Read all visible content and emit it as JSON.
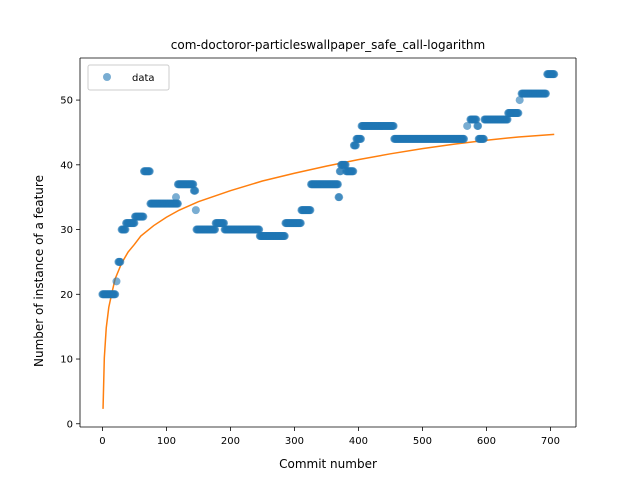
{
  "chart_data": {
    "type": "scatter",
    "title": "com-doctoror-particleswallpaper_safe_call-logarithm",
    "xlabel": "Commit number",
    "ylabel": "Number of instance of a feature",
    "xlim": [
      -35,
      740
    ],
    "ylim": [
      -0.5,
      56.5
    ],
    "xticks": [
      0,
      100,
      200,
      300,
      400,
      500,
      600,
      700
    ],
    "yticks": [
      0,
      10,
      20,
      30,
      40,
      50
    ],
    "legend": {
      "position": "top-left",
      "entries": [
        "data"
      ]
    },
    "colors": {
      "data": "#1f77b4",
      "fit": "#ff7f0e"
    },
    "series": [
      {
        "name": "data",
        "kind": "scatter",
        "segments": [
          [
            0,
            20,
            20,
            1
          ],
          [
            22,
            22,
            22,
            1
          ],
          [
            24,
            23,
            23,
            1
          ],
          [
            25,
            25,
            28,
            1
          ],
          [
            30,
            30,
            36,
            1
          ],
          [
            37,
            31,
            50,
            1
          ],
          [
            51,
            32,
            64,
            1
          ],
          [
            65,
            39,
            74,
            1
          ],
          [
            75,
            34,
            118,
            1
          ],
          [
            115,
            35,
            115,
            1
          ],
          [
            118,
            37,
            142,
            1
          ],
          [
            143,
            36,
            145,
            1
          ],
          [
            146,
            33,
            146,
            1
          ],
          [
            147,
            30,
            176,
            1
          ],
          [
            177,
            31,
            190,
            1
          ],
          [
            191,
            30,
            245,
            1
          ],
          [
            246,
            29,
            285,
            1
          ],
          [
            286,
            31,
            310,
            1
          ],
          [
            311,
            33,
            325,
            1
          ],
          [
            326,
            37,
            368,
            1
          ],
          [
            369,
            35,
            370,
            1
          ],
          [
            371,
            39,
            372,
            1
          ],
          [
            373,
            40,
            380,
            1
          ],
          [
            381,
            39,
            392,
            1
          ],
          [
            393,
            43,
            396,
            1
          ],
          [
            397,
            44,
            404,
            1
          ],
          [
            405,
            46,
            455,
            1
          ],
          [
            456,
            44,
            565,
            1
          ],
          [
            570,
            46,
            570,
            1
          ],
          [
            575,
            47,
            584,
            1
          ],
          [
            586,
            46,
            587,
            1
          ],
          [
            588,
            44,
            596,
            1
          ],
          [
            597,
            47,
            633,
            1
          ],
          [
            634,
            48,
            650,
            1
          ],
          [
            652,
            50,
            652,
            1
          ],
          [
            655,
            51,
            693,
            1
          ],
          [
            695,
            54,
            706,
            1
          ]
        ]
      },
      {
        "name": "fit",
        "kind": "line",
        "x": [
          1,
          3,
          6,
          10,
          15,
          20,
          30,
          40,
          50,
          60,
          80,
          100,
          120,
          150,
          200,
          250,
          300,
          350,
          400,
          450,
          500,
          550,
          600,
          650,
          706
        ],
        "y": [
          2.3,
          10.2,
          14.8,
          18.0,
          20.3,
          22.4,
          24.8,
          26.5,
          27.7,
          29.0,
          30.6,
          31.9,
          33.0,
          34.3,
          36.0,
          37.5,
          38.7,
          39.8,
          40.8,
          41.7,
          42.5,
          43.2,
          43.8,
          44.3,
          44.7
        ]
      }
    ]
  }
}
